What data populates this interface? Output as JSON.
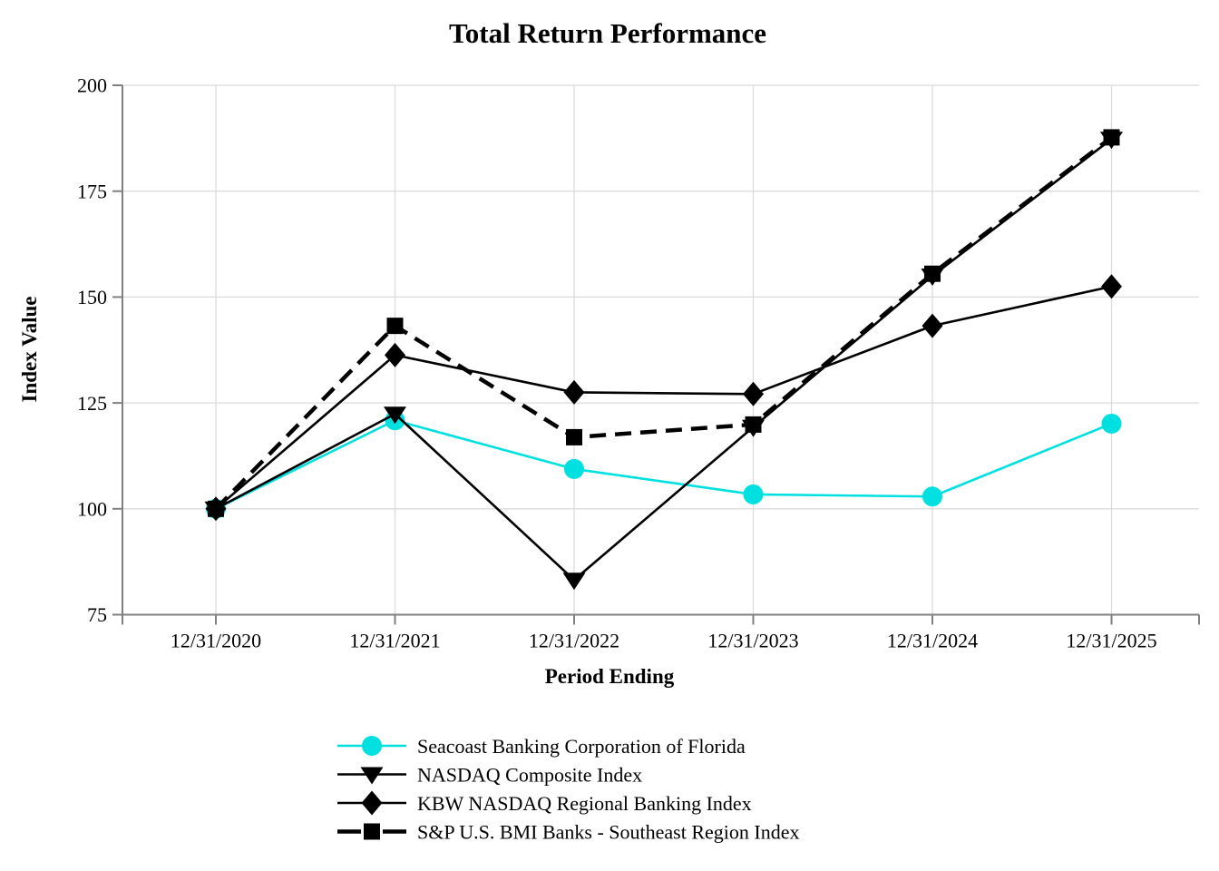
{
  "chart_data": {
    "type": "line",
    "title": "Total Return Performance",
    "xlabel": "Period Ending",
    "ylabel": "Index Value",
    "categories": [
      "12/31/2020",
      "12/31/2021",
      "12/31/2022",
      "12/31/2023",
      "12/31/2024",
      "12/31/2025"
    ],
    "ylim": [
      75,
      200
    ],
    "yticks": [
      75,
      100,
      125,
      150,
      175,
      200
    ],
    "grid": true,
    "legend_position": "bottom-left",
    "grid_color": "#DBDBDB",
    "axis_color": "#808080",
    "series": [
      {
        "name": "Seacoast Banking Corporation of Florida",
        "marker": "circle",
        "line_style": "solid",
        "color": "#00E0E0",
        "values": [
          100,
          120.9,
          109.4,
          103.4,
          102.9,
          120.1
        ]
      },
      {
        "name": "NASDAQ Composite Index",
        "marker": "triangle-down",
        "line_style": "solid",
        "color": "#000000",
        "values": [
          100,
          122.4,
          83.2,
          119.3,
          155.0,
          187.3
        ]
      },
      {
        "name": "KBW NASDAQ Regional Banking Index",
        "marker": "diamond",
        "line_style": "solid",
        "color": "#000000",
        "values": [
          100,
          136.3,
          127.5,
          127.1,
          143.2,
          152.5
        ]
      },
      {
        "name": "S&P U.S. BMI Banks - Southeast Region Index",
        "marker": "square",
        "line_style": "dashed",
        "color": "#000000",
        "values": [
          100,
          143.2,
          116.9,
          119.9,
          155.5,
          187.7
        ]
      }
    ]
  }
}
